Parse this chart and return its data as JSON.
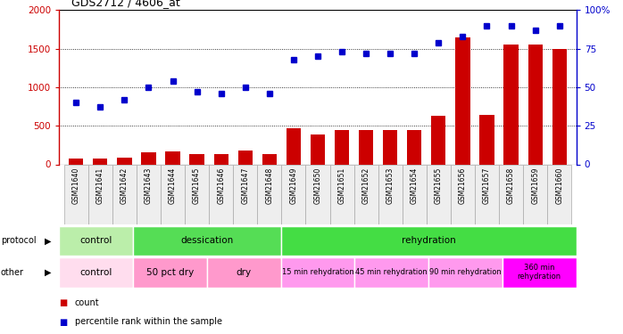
{
  "title": "GDS2712 / 4606_at",
  "samples": [
    "GSM21640",
    "GSM21641",
    "GSM21642",
    "GSM21643",
    "GSM21644",
    "GSM21645",
    "GSM21646",
    "GSM21647",
    "GSM21648",
    "GSM21649",
    "GSM21650",
    "GSM21651",
    "GSM21652",
    "GSM21653",
    "GSM21654",
    "GSM21655",
    "GSM21656",
    "GSM21657",
    "GSM21658",
    "GSM21659",
    "GSM21660"
  ],
  "count_values": [
    75,
    75,
    90,
    155,
    165,
    130,
    130,
    175,
    130,
    465,
    385,
    450,
    440,
    440,
    445,
    630,
    1650,
    645,
    1550,
    1550,
    1490
  ],
  "percentile_values": [
    40,
    37,
    42,
    50,
    54,
    47,
    46,
    50,
    46,
    68,
    70,
    73,
    72,
    72,
    72,
    79,
    83,
    90,
    90,
    87,
    90
  ],
  "bar_color": "#cc0000",
  "dot_color": "#0000cc",
  "ylim_left": [
    0,
    2000
  ],
  "ylim_right": [
    0,
    100
  ],
  "yticks_left": [
    0,
    500,
    1000,
    1500,
    2000
  ],
  "yticks_right": [
    0,
    25,
    50,
    75,
    100
  ],
  "protocol_segments": [
    {
      "label": "control",
      "start": 0,
      "end": 3,
      "color": "#aaddaa"
    },
    {
      "label": "dessication",
      "start": 3,
      "end": 9,
      "color": "#44cc44"
    },
    {
      "label": "rehydration",
      "start": 9,
      "end": 21,
      "color": "#44dd44"
    }
  ],
  "other_segments": [
    {
      "label": "control",
      "start": 0,
      "end": 3,
      "color": "#ffccdd"
    },
    {
      "label": "50 pct dry",
      "start": 3,
      "end": 6,
      "color": "#ff88cc"
    },
    {
      "label": "dry",
      "start": 6,
      "end": 9,
      "color": "#ff88cc"
    },
    {
      "label": "15 min rehydration",
      "start": 9,
      "end": 12,
      "color": "#ff88ee"
    },
    {
      "label": "45 min rehydration",
      "start": 12,
      "end": 15,
      "color": "#ff88ee"
    },
    {
      "label": "90 min rehydration",
      "start": 15,
      "end": 18,
      "color": "#ff88ee"
    },
    {
      "label": "360 min\nrehydration",
      "start": 18,
      "end": 21,
      "color": "#ff00ff"
    }
  ],
  "legend_items": [
    {
      "marker": "s",
      "color": "#cc0000",
      "label": "count"
    },
    {
      "marker": "s",
      "color": "#0000cc",
      "label": "percentile rank within the sample"
    }
  ]
}
